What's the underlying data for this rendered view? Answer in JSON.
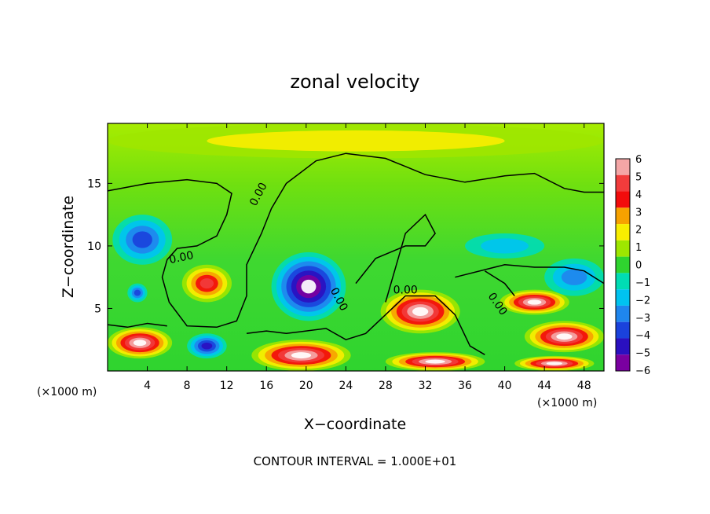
{
  "chart_data": {
    "type": "heatmap",
    "title": "zonal velocity",
    "xlabel": "X−coordinate",
    "ylabel": "Z−coordinate",
    "x_unit_left": "(×1000 m)",
    "x_unit_right": "(×1000 m)",
    "footer": "CONTOUR INTERVAL = 1.000E+01",
    "xlim": [
      0,
      50
    ],
    "ylim": [
      0,
      19.8
    ],
    "x_ticks": [
      4,
      8,
      12,
      16,
      20,
      24,
      28,
      32,
      36,
      40,
      44,
      48
    ],
    "y_ticks": [
      5,
      10,
      15
    ],
    "zero_contour_label": "0.00",
    "colorbar": {
      "levels": [
        6,
        5,
        4,
        3,
        2,
        1,
        0,
        -1,
        -2,
        -3,
        -4,
        -5,
        -6
      ],
      "labels": [
        "6",
        "5",
        "4",
        "3",
        "2",
        "1",
        "0",
        "−1",
        "−2",
        "−3",
        "−4",
        "−5",
        "−6"
      ],
      "colors": [
        "#f4a6a6",
        "#f23c3c",
        "#f20c0c",
        "#f7a200",
        "#f8ee00",
        "#9ee600",
        "#2fd42f",
        "#00dcb4",
        "#00c3f0",
        "#1f86ee",
        "#1a42dc",
        "#2a10c0",
        "#7a00a0"
      ]
    },
    "background_color": "#5be018",
    "out_of_range_color": "#ffffff",
    "regions": [
      {
        "sign": "negative",
        "x": [
          0.5,
          6.5
        ],
        "z": [
          8.5,
          12.5
        ],
        "peak": -4
      },
      {
        "sign": "positive",
        "x": [
          7.5,
          12.5
        ],
        "z": [
          5.5,
          8.5
        ],
        "peak": 5
      },
      {
        "sign": "negative",
        "x": [
          16.5,
          24.0
        ],
        "z": [
          4.0,
          9.5
        ],
        "peak": -7
      },
      {
        "sign": "positive",
        "x": [
          27.5,
          35.5
        ],
        "z": [
          3.0,
          6.5
        ],
        "peak": 7
      },
      {
        "sign": "positive",
        "x": [
          39.5,
          46.5
        ],
        "z": [
          4.5,
          6.5
        ],
        "peak": 7
      },
      {
        "sign": "positive",
        "x": [
          42.0,
          50.0
        ],
        "z": [
          1.5,
          4.0
        ],
        "peak": 7
      },
      {
        "sign": "positive",
        "x": [
          0.0,
          6.5
        ],
        "z": [
          1.0,
          3.5
        ],
        "peak": 7
      },
      {
        "sign": "positive",
        "x": [
          14.5,
          24.5
        ],
        "z": [
          0.0,
          2.5
        ],
        "peak": 7
      },
      {
        "sign": "positive",
        "x": [
          28.0,
          38.0
        ],
        "z": [
          0.0,
          1.5
        ],
        "peak": 7
      },
      {
        "sign": "positive",
        "x": [
          41.0,
          49.0
        ],
        "z": [
          0.0,
          1.2
        ],
        "peak": 7
      },
      {
        "sign": "negative",
        "x": [
          8.0,
          12.0
        ],
        "z": [
          1.0,
          3.0
        ],
        "peak": -5
      },
      {
        "sign": "negative",
        "x": [
          2.0,
          4.0
        ],
        "z": [
          5.5,
          7.0
        ],
        "peak": -4
      },
      {
        "sign": "negative",
        "x": [
          36.0,
          44.0
        ],
        "z": [
          9.0,
          11.0
        ],
        "peak": -2
      },
      {
        "sign": "negative",
        "x": [
          44.0,
          50.0
        ],
        "z": [
          6.0,
          9.0
        ],
        "peak": -3
      },
      {
        "sign": "positive",
        "x": [
          0.0,
          50.0
        ],
        "z": [
          17.0,
          19.8
        ],
        "peak": 1.6
      }
    ]
  }
}
